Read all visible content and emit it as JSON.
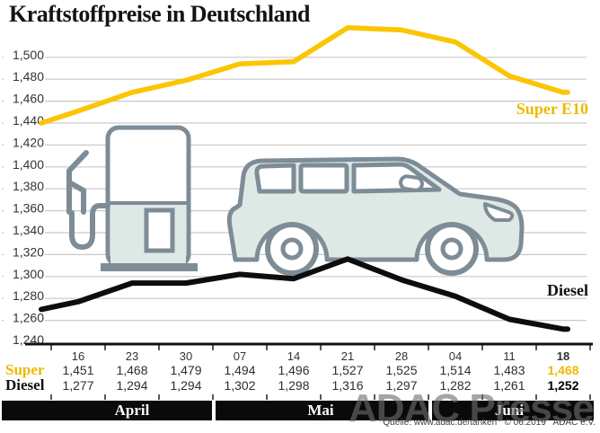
{
  "title": "Kraftstoffpreise in Deutschland",
  "watermark": "ADAC Presse",
  "source": "Quelle: www.adac.de/tanken   © 06.2019   ADAC e.V.",
  "chart_data": {
    "type": "line",
    "title": "Kraftstoffpreise in Deutschland",
    "x_tick_labels": [
      "16",
      "23",
      "30",
      "07",
      "14",
      "21",
      "28",
      "04",
      "11",
      "18"
    ],
    "months": [
      {
        "label": "April",
        "columns": [
          0,
          2
        ]
      },
      {
        "label": "Mai",
        "columns": [
          3,
          6
        ]
      },
      {
        "label": "Juni",
        "columns": [
          7,
          9
        ]
      }
    ],
    "ylim": [
      1.24,
      1.53
    ],
    "ytick_step": 0.02,
    "ytick_labels": [
      "1,500",
      "1,480",
      "1,460",
      "1,440",
      "1,420",
      "1,400",
      "1,380",
      "1,360",
      "1,340",
      "1,320",
      "1,300",
      "1,280",
      "1,260",
      "1,240"
    ],
    "grid": true,
    "legend_position": "inline-right",
    "value_format": "comma-decimal-3",
    "series": [
      {
        "name": "Super",
        "legend_label": "Super E10",
        "line_color": "#FBC504",
        "label_color": "#F0B800",
        "values": [
          1.451,
          1.468,
          1.479,
          1.494,
          1.496,
          1.527,
          1.525,
          1.514,
          1.483,
          1.468
        ],
        "lead_in_value": 1.44
      },
      {
        "name": "Diesel",
        "legend_label": "Diesel",
        "line_color": "#0d0d0d",
        "label_color": "#111111",
        "values": [
          1.277,
          1.294,
          1.294,
          1.302,
          1.298,
          1.316,
          1.297,
          1.282,
          1.261,
          1.252
        ],
        "lead_in_value": 1.27
      }
    ]
  },
  "table": {
    "rows": [
      {
        "label": "Super",
        "series": "Super"
      },
      {
        "label": "Diesel",
        "series": "Diesel"
      }
    ]
  }
}
